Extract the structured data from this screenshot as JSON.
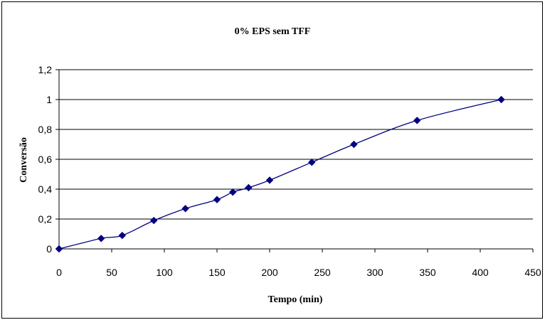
{
  "chart_data": {
    "type": "line",
    "title": "0% EPS sem TFF",
    "xlabel": "Tempo (min)",
    "ylabel": "Conversão",
    "xlim": [
      0,
      450
    ],
    "ylim": [
      0,
      1.2
    ],
    "x_ticks": [
      "0",
      "50",
      "100",
      "150",
      "200",
      "250",
      "300",
      "350",
      "400",
      "450"
    ],
    "y_ticks": [
      "0",
      "0,2",
      "0,4",
      "0,6",
      "0,8",
      "1",
      "1,2"
    ],
    "grid": "horizontal",
    "legend": "none",
    "series": [
      {
        "color": "#000080",
        "marker": "diamond",
        "x": [
          0,
          40,
          60,
          90,
          120,
          150,
          165,
          180,
          200,
          240,
          280,
          340,
          420
        ],
        "y": [
          0,
          0.07,
          0.09,
          0.19,
          0.27,
          0.33,
          0.38,
          0.41,
          0.46,
          0.58,
          0.7,
          0.86,
          1.0
        ]
      }
    ]
  }
}
